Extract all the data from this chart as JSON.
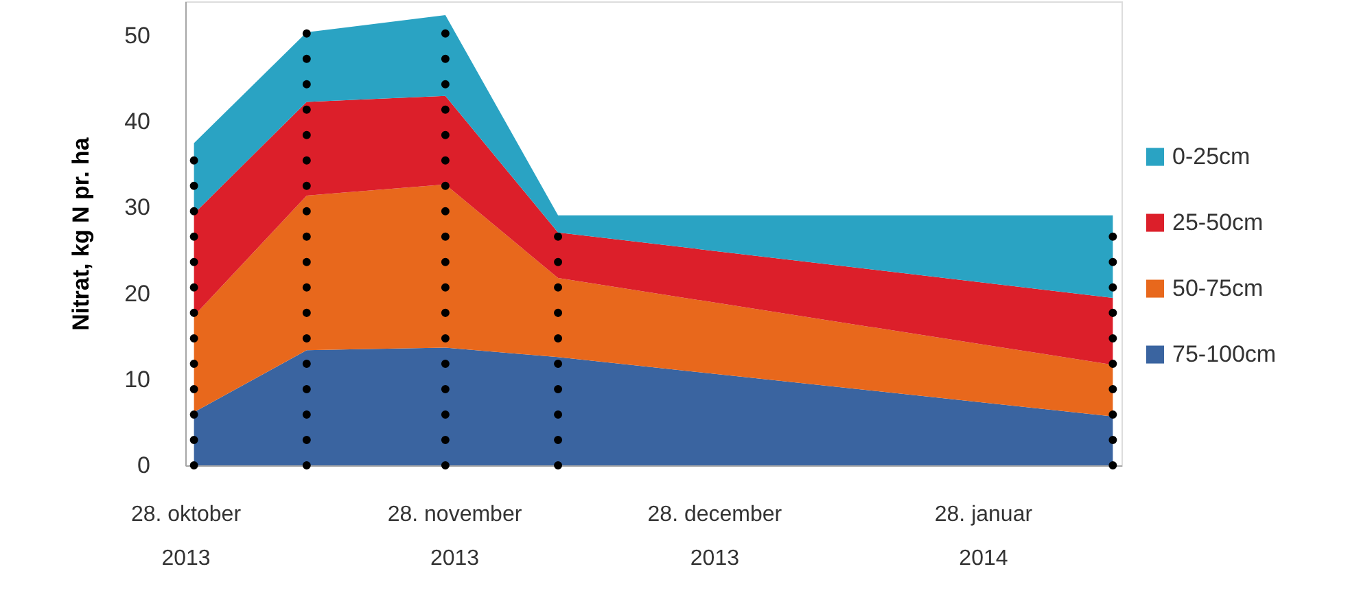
{
  "chart_data": {
    "type": "area",
    "stacked": true,
    "ylabel": "Nitrat, kg N pr. ha",
    "x": [
      "2013-10-29",
      "2013-11-11",
      "2013-11-27",
      "2013-12-10",
      "2014-02-12"
    ],
    "series": [
      {
        "name": "75-100cm",
        "color": "#3a64a0",
        "values": [
          6.2,
          13.4,
          13.7,
          12.6,
          5.7
        ]
      },
      {
        "name": "50-75cm",
        "color": "#e8681c",
        "values": [
          11.2,
          18.0,
          19.0,
          9.2,
          6.0
        ]
      },
      {
        "name": "25-50cm",
        "color": "#dc1f2a",
        "values": [
          11.9,
          10.9,
          10.3,
          5.3,
          7.8
        ]
      },
      {
        "name": "0-25cm",
        "color": "#2aa3c3",
        "values": [
          8.2,
          8.1,
          9.4,
          2.0,
          9.6
        ]
      }
    ],
    "xlim": [
      "2013-10-28",
      "2014-02-13"
    ],
    "xticks": [
      {
        "value": "2013-10-28",
        "label": "28. oktober\n2013"
      },
      {
        "value": "2013-11-28",
        "label": "28. november\n2013"
      },
      {
        "value": "2013-12-28",
        "label": "28. december\n2013"
      },
      {
        "value": "2014-01-28",
        "label": "28. januar\n2014"
      }
    ],
    "ylim": [
      0,
      54
    ],
    "yticks": [
      0,
      10,
      20,
      30,
      40,
      50
    ],
    "ref_lines": [
      {
        "axis": "x",
        "value": "2013-10-29",
        "color": "#000000",
        "line_style": "dotted"
      },
      {
        "axis": "x",
        "value": "2013-11-11",
        "color": "#000000",
        "line_style": "dotted"
      },
      {
        "axis": "x",
        "value": "2013-11-27",
        "color": "#000000",
        "line_style": "dotted"
      },
      {
        "axis": "x",
        "value": "2013-12-10",
        "color": "#000000",
        "line_style": "dotted"
      },
      {
        "axis": "x",
        "value": "2014-02-12",
        "color": "#000000",
        "line_style": "dotted"
      }
    ],
    "legend": "right",
    "grid": false
  }
}
